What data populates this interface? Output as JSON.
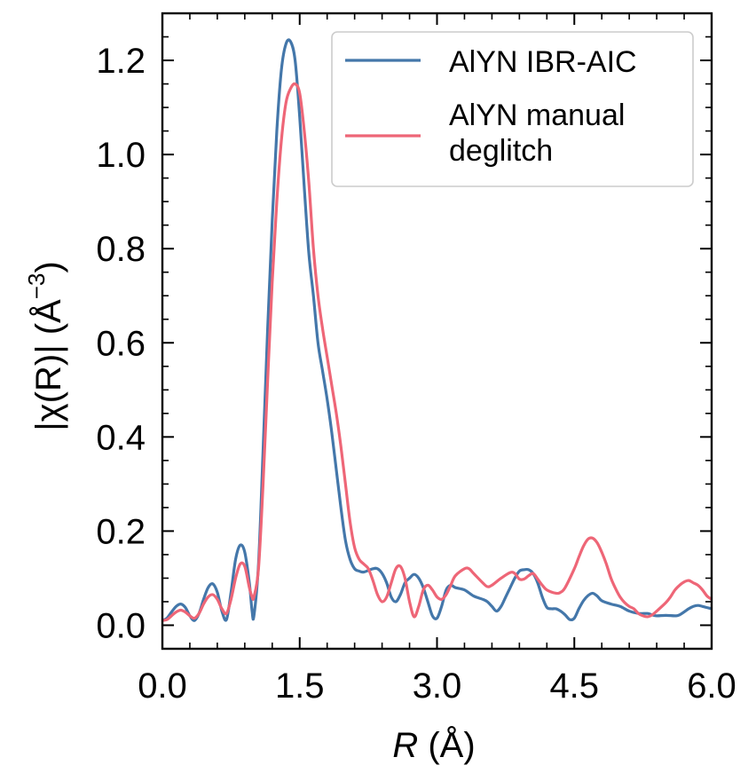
{
  "chart_data": {
    "type": "line",
    "xlabel_var": "R",
    "xlabel_unit": " (Å)",
    "ylabel_main": "|χ(R)| (Å",
    "ylabel_sup": "−3",
    "ylabel_close": ")",
    "xlim": [
      0,
      6
    ],
    "ylim": [
      -0.05,
      1.3
    ],
    "x_ticks": [
      0,
      1.5,
      3.0,
      4.5,
      6.0
    ],
    "x_tick_labels": [
      "0.0",
      "1.5",
      "3.0",
      "4.5",
      "6.0"
    ],
    "y_ticks": [
      0,
      0.2,
      0.4,
      0.6,
      0.8,
      1.0,
      1.2
    ],
    "y_tick_labels": [
      "0.0",
      "0.2",
      "0.4",
      "0.6",
      "0.8",
      "1.0",
      "1.2"
    ],
    "grid": false,
    "legend_position": "top-right",
    "series": [
      {
        "name": "AlYN IBR-AIC",
        "color": "#4477AA",
        "points": [
          [
            0,
            0.01
          ],
          [
            0.05,
            0.015
          ],
          [
            0.1,
            0.028
          ],
          [
            0.15,
            0.04
          ],
          [
            0.2,
            0.045
          ],
          [
            0.25,
            0.038
          ],
          [
            0.3,
            0.02
          ],
          [
            0.35,
            0.01
          ],
          [
            0.4,
            0.025
          ],
          [
            0.45,
            0.055
          ],
          [
            0.5,
            0.08
          ],
          [
            0.55,
            0.088
          ],
          [
            0.6,
            0.07
          ],
          [
            0.65,
            0.03
          ],
          [
            0.7,
            0.012
          ],
          [
            0.75,
            0.07
          ],
          [
            0.8,
            0.14
          ],
          [
            0.85,
            0.17
          ],
          [
            0.9,
            0.155
          ],
          [
            0.95,
            0.09
          ],
          [
            0.98,
            0.03
          ],
          [
            1.0,
            0.02
          ],
          [
            1.05,
            0.13
          ],
          [
            1.1,
            0.37
          ],
          [
            1.15,
            0.63
          ],
          [
            1.2,
            0.86
          ],
          [
            1.25,
            1.05
          ],
          [
            1.3,
            1.18
          ],
          [
            1.35,
            1.235
          ],
          [
            1.4,
            1.24
          ],
          [
            1.45,
            1.2
          ],
          [
            1.5,
            1.08
          ],
          [
            1.55,
            0.93
          ],
          [
            1.6,
            0.79
          ],
          [
            1.65,
            0.7
          ],
          [
            1.7,
            0.6
          ],
          [
            1.75,
            0.54
          ],
          [
            1.8,
            0.48
          ],
          [
            1.85,
            0.41
          ],
          [
            1.9,
            0.33
          ],
          [
            1.95,
            0.25
          ],
          [
            2.0,
            0.18
          ],
          [
            2.05,
            0.14
          ],
          [
            2.1,
            0.12
          ],
          [
            2.15,
            0.115
          ],
          [
            2.2,
            0.113
          ],
          [
            2.3,
            0.12
          ],
          [
            2.35,
            0.12
          ],
          [
            2.4,
            0.11
          ],
          [
            2.45,
            0.09
          ],
          [
            2.5,
            0.06
          ],
          [
            2.55,
            0.05
          ],
          [
            2.6,
            0.065
          ],
          [
            2.65,
            0.09
          ],
          [
            2.7,
            0.1
          ],
          [
            2.75,
            0.108
          ],
          [
            2.8,
            0.1
          ],
          [
            2.85,
            0.08
          ],
          [
            2.9,
            0.05
          ],
          [
            2.95,
            0.02
          ],
          [
            3.0,
            0.015
          ],
          [
            3.05,
            0.04
          ],
          [
            3.1,
            0.075
          ],
          [
            3.15,
            0.085
          ],
          [
            3.2,
            0.08
          ],
          [
            3.3,
            0.075
          ],
          [
            3.4,
            0.062
          ],
          [
            3.5,
            0.055
          ],
          [
            3.55,
            0.05
          ],
          [
            3.6,
            0.04
          ],
          [
            3.65,
            0.03
          ],
          [
            3.7,
            0.04
          ],
          [
            3.75,
            0.06
          ],
          [
            3.8,
            0.08
          ],
          [
            3.85,
            0.1
          ],
          [
            3.9,
            0.115
          ],
          [
            3.95,
            0.118
          ],
          [
            4.0,
            0.118
          ],
          [
            4.05,
            0.11
          ],
          [
            4.1,
            0.09
          ],
          [
            4.15,
            0.06
          ],
          [
            4.2,
            0.038
          ],
          [
            4.25,
            0.035
          ],
          [
            4.3,
            0.035
          ],
          [
            4.35,
            0.03
          ],
          [
            4.4,
            0.022
          ],
          [
            4.45,
            0.012
          ],
          [
            4.5,
            0.015
          ],
          [
            4.55,
            0.035
          ],
          [
            4.6,
            0.052
          ],
          [
            4.65,
            0.063
          ],
          [
            4.7,
            0.068
          ],
          [
            4.75,
            0.062
          ],
          [
            4.8,
            0.052
          ],
          [
            4.9,
            0.045
          ],
          [
            5.0,
            0.04
          ],
          [
            5.1,
            0.03
          ],
          [
            5.2,
            0.025
          ],
          [
            5.3,
            0.025
          ],
          [
            5.35,
            0.022
          ],
          [
            5.4,
            0.02
          ],
          [
            5.5,
            0.021
          ],
          [
            5.6,
            0.02
          ],
          [
            5.65,
            0.022
          ],
          [
            5.75,
            0.035
          ],
          [
            5.8,
            0.04
          ],
          [
            5.85,
            0.042
          ],
          [
            5.9,
            0.04
          ],
          [
            6.0,
            0.035
          ]
        ]
      },
      {
        "name": "AlYN manual deglitch",
        "legend_lines": [
          "AlYN manual",
          "deglitch"
        ],
        "color": "#EE6677",
        "points": [
          [
            0,
            0.01
          ],
          [
            0.05,
            0.012
          ],
          [
            0.1,
            0.02
          ],
          [
            0.15,
            0.028
          ],
          [
            0.2,
            0.032
          ],
          [
            0.25,
            0.028
          ],
          [
            0.3,
            0.02
          ],
          [
            0.35,
            0.015
          ],
          [
            0.4,
            0.025
          ],
          [
            0.45,
            0.045
          ],
          [
            0.5,
            0.06
          ],
          [
            0.55,
            0.065
          ],
          [
            0.6,
            0.055
          ],
          [
            0.65,
            0.035
          ],
          [
            0.7,
            0.025
          ],
          [
            0.75,
            0.055
          ],
          [
            0.8,
            0.1
          ],
          [
            0.85,
            0.13
          ],
          [
            0.9,
            0.125
          ],
          [
            0.95,
            0.08
          ],
          [
            0.98,
            0.06
          ],
          [
            1.0,
            0.06
          ],
          [
            1.05,
            0.12
          ],
          [
            1.1,
            0.3
          ],
          [
            1.15,
            0.52
          ],
          [
            1.2,
            0.73
          ],
          [
            1.25,
            0.9
          ],
          [
            1.3,
            1.03
          ],
          [
            1.35,
            1.11
          ],
          [
            1.4,
            1.14
          ],
          [
            1.45,
            1.15
          ],
          [
            1.5,
            1.13
          ],
          [
            1.55,
            1.05
          ],
          [
            1.6,
            0.94
          ],
          [
            1.65,
            0.8
          ],
          [
            1.7,
            0.7
          ],
          [
            1.75,
            0.63
          ],
          [
            1.8,
            0.57
          ],
          [
            1.85,
            0.51
          ],
          [
            1.9,
            0.45
          ],
          [
            1.95,
            0.38
          ],
          [
            2.0,
            0.3
          ],
          [
            2.05,
            0.22
          ],
          [
            2.1,
            0.165
          ],
          [
            2.15,
            0.14
          ],
          [
            2.2,
            0.13
          ],
          [
            2.25,
            0.12
          ],
          [
            2.3,
            0.095
          ],
          [
            2.35,
            0.065
          ],
          [
            2.4,
            0.05
          ],
          [
            2.45,
            0.06
          ],
          [
            2.5,
            0.09
          ],
          [
            2.55,
            0.12
          ],
          [
            2.6,
            0.125
          ],
          [
            2.65,
            0.1
          ],
          [
            2.7,
            0.05
          ],
          [
            2.75,
            0.018
          ],
          [
            2.8,
            0.04
          ],
          [
            2.85,
            0.075
          ],
          [
            2.9,
            0.085
          ],
          [
            2.95,
            0.075
          ],
          [
            3.0,
            0.06
          ],
          [
            3.05,
            0.055
          ],
          [
            3.1,
            0.065
          ],
          [
            3.15,
            0.085
          ],
          [
            3.2,
            0.105
          ],
          [
            3.3,
            0.12
          ],
          [
            3.35,
            0.12
          ],
          [
            3.4,
            0.11
          ],
          [
            3.5,
            0.09
          ],
          [
            3.55,
            0.082
          ],
          [
            3.6,
            0.085
          ],
          [
            3.7,
            0.1
          ],
          [
            3.8,
            0.112
          ],
          [
            3.85,
            0.11
          ],
          [
            3.9,
            0.098
          ],
          [
            3.95,
            0.098
          ],
          [
            4.0,
            0.105
          ],
          [
            4.05,
            0.11
          ],
          [
            4.1,
            0.098
          ],
          [
            4.15,
            0.085
          ],
          [
            4.2,
            0.075
          ],
          [
            4.3,
            0.068
          ],
          [
            4.35,
            0.07
          ],
          [
            4.4,
            0.08
          ],
          [
            4.5,
            0.12
          ],
          [
            4.55,
            0.145
          ],
          [
            4.6,
            0.168
          ],
          [
            4.65,
            0.183
          ],
          [
            4.7,
            0.185
          ],
          [
            4.75,
            0.175
          ],
          [
            4.8,
            0.155
          ],
          [
            4.85,
            0.13
          ],
          [
            4.9,
            0.1
          ],
          [
            4.95,
            0.078
          ],
          [
            5.0,
            0.06
          ],
          [
            5.05,
            0.048
          ],
          [
            5.1,
            0.04
          ],
          [
            5.15,
            0.035
          ],
          [
            5.2,
            0.025
          ],
          [
            5.25,
            0.02
          ],
          [
            5.3,
            0.018
          ],
          [
            5.35,
            0.022
          ],
          [
            5.4,
            0.03
          ],
          [
            5.5,
            0.048
          ],
          [
            5.55,
            0.06
          ],
          [
            5.6,
            0.075
          ],
          [
            5.65,
            0.085
          ],
          [
            5.7,
            0.092
          ],
          [
            5.75,
            0.095
          ],
          [
            5.8,
            0.09
          ],
          [
            5.85,
            0.085
          ],
          [
            5.9,
            0.075
          ],
          [
            5.95,
            0.062
          ],
          [
            6.0,
            0.055
          ]
        ]
      }
    ]
  }
}
